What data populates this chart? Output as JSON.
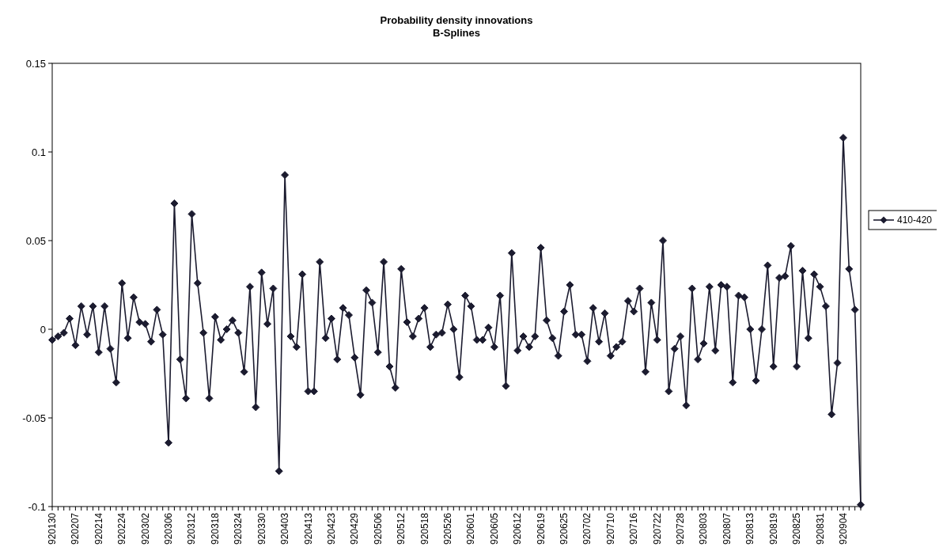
{
  "chart_data": {
    "type": "line",
    "title": "Probability density innovations",
    "subtitle": "B-Splines",
    "categories": [
      "920130",
      null,
      null,
      null,
      "920207",
      null,
      null,
      null,
      "920214",
      null,
      null,
      null,
      "920224",
      null,
      null,
      null,
      "920302",
      null,
      null,
      null,
      "920306",
      null,
      null,
      null,
      "920312",
      null,
      null,
      null,
      "920318",
      null,
      null,
      null,
      "920324",
      null,
      null,
      null,
      "920330",
      null,
      null,
      null,
      "920403",
      null,
      null,
      null,
      "920413",
      null,
      null,
      null,
      "920423",
      null,
      null,
      null,
      "920429",
      null,
      null,
      null,
      "920506",
      null,
      null,
      null,
      "920512",
      null,
      null,
      null,
      "920518",
      null,
      null,
      null,
      "920526",
      null,
      null,
      null,
      "920601",
      null,
      null,
      null,
      "920605",
      null,
      null,
      null,
      "920612",
      null,
      null,
      null,
      "920619",
      null,
      null,
      null,
      "920625",
      null,
      null,
      null,
      "920702",
      null,
      null,
      null,
      "920710",
      null,
      null,
      null,
      "920716",
      null,
      null,
      null,
      "920722",
      null,
      null,
      null,
      "920728",
      null,
      null,
      null,
      "920803",
      null,
      null,
      null,
      "920807",
      null,
      null,
      null,
      "920813",
      null,
      null,
      null,
      "920819",
      null,
      null,
      null,
      "920825",
      null,
      null,
      null,
      "920831",
      null,
      null,
      null,
      "920904",
      null,
      null,
      null
    ],
    "series": [
      {
        "name": "410-420",
        "color": "#1b1b2f",
        "values": [
          -0.006,
          -0.004,
          -0.002,
          0.006,
          -0.009,
          0.013,
          -0.003,
          0.013,
          -0.013,
          0.013,
          -0.011,
          -0.03,
          0.026,
          -0.005,
          0.018,
          0.004,
          0.003,
          -0.007,
          0.011,
          -0.003,
          -0.064,
          0.071,
          -0.017,
          -0.039,
          0.065,
          0.026,
          -0.002,
          -0.039,
          0.007,
          -0.006,
          0.0,
          0.005,
          -0.002,
          -0.024,
          0.024,
          -0.044,
          0.032,
          0.003,
          0.023,
          -0.08,
          0.087,
          -0.004,
          -0.01,
          0.031,
          -0.035,
          -0.035,
          0.038,
          -0.005,
          0.006,
          -0.017,
          0.012,
          0.008,
          -0.016,
          -0.037,
          0.022,
          0.015,
          -0.013,
          0.038,
          -0.021,
          -0.033,
          0.034,
          0.004,
          -0.004,
          0.006,
          0.012,
          -0.01,
          -0.003,
          -0.002,
          0.014,
          0.0,
          -0.027,
          0.019,
          0.013,
          -0.006,
          -0.006,
          0.001,
          -0.01,
          0.019,
          -0.032,
          0.043,
          -0.012,
          -0.004,
          -0.01,
          -0.004,
          0.046,
          0.005,
          -0.005,
          -0.015,
          0.01,
          0.025,
          -0.003,
          -0.003,
          -0.018,
          0.012,
          -0.007,
          0.009,
          -0.015,
          -0.01,
          -0.007,
          0.016,
          0.01,
          0.023,
          -0.024,
          0.015,
          -0.006,
          0.05,
          -0.035,
          -0.011,
          -0.004,
          -0.043,
          0.023,
          -0.017,
          -0.008,
          0.024,
          -0.012,
          0.025,
          0.024,
          -0.03,
          0.019,
          0.018,
          0.0,
          -0.029,
          0.0,
          0.036,
          -0.021,
          0.029,
          0.03,
          0.047,
          -0.021,
          0.033,
          -0.005,
          0.031,
          0.024,
          0.013,
          -0.048,
          -0.019,
          0.108,
          0.034,
          0.011,
          -0.099
        ]
      }
    ],
    "ylim": [
      -0.1,
      0.15
    ],
    "yticks": [
      -0.1,
      -0.05,
      0,
      0.05,
      0.1,
      0.15
    ],
    "marker": "diamond",
    "legend": "right",
    "grid": false
  }
}
